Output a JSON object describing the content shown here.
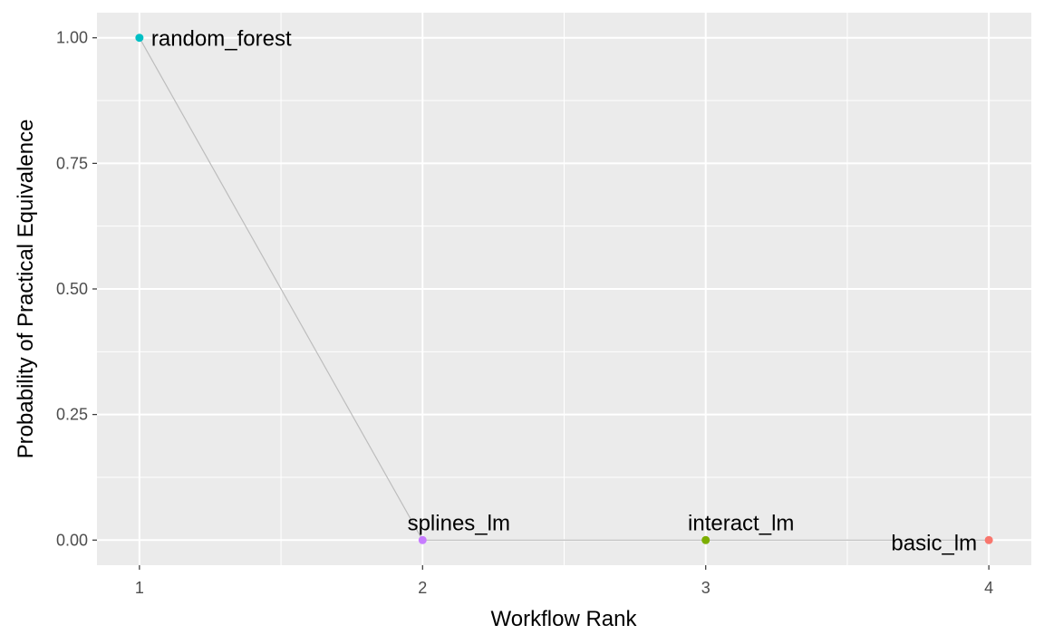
{
  "chart_data": {
    "type": "scatter",
    "title": "",
    "xlabel": "Workflow Rank",
    "ylabel": "Probability of Practical Equivalence",
    "xlim": [
      0.85,
      4.15
    ],
    "ylim": [
      -0.05,
      1.05
    ],
    "x_ticks": [
      "1",
      "2",
      "3",
      "4"
    ],
    "y_ticks": [
      "0.00",
      "0.25",
      "0.50",
      "0.75",
      "1.00"
    ],
    "x_tick_values": [
      1,
      2,
      3,
      4
    ],
    "y_tick_values": [
      0,
      0.25,
      0.5,
      0.75,
      1.0
    ],
    "grid": true,
    "connecting_line": true,
    "line_color": "#bdbdbd",
    "panel_background": "#ebebeb",
    "points": [
      {
        "label": "random_forest",
        "x": 1,
        "y": 1.0,
        "color": "#00bfc4",
        "label_position": "right"
      },
      {
        "label": "splines_lm",
        "x": 2,
        "y": 0.0,
        "color": "#c77cff",
        "label_position": "above"
      },
      {
        "label": "interact_lm",
        "x": 3,
        "y": 0.0,
        "color": "#7cae00",
        "label_position": "above-right"
      },
      {
        "label": "basic_lm",
        "x": 4,
        "y": 0.0,
        "color": "#f8766d",
        "label_position": "left"
      }
    ]
  }
}
